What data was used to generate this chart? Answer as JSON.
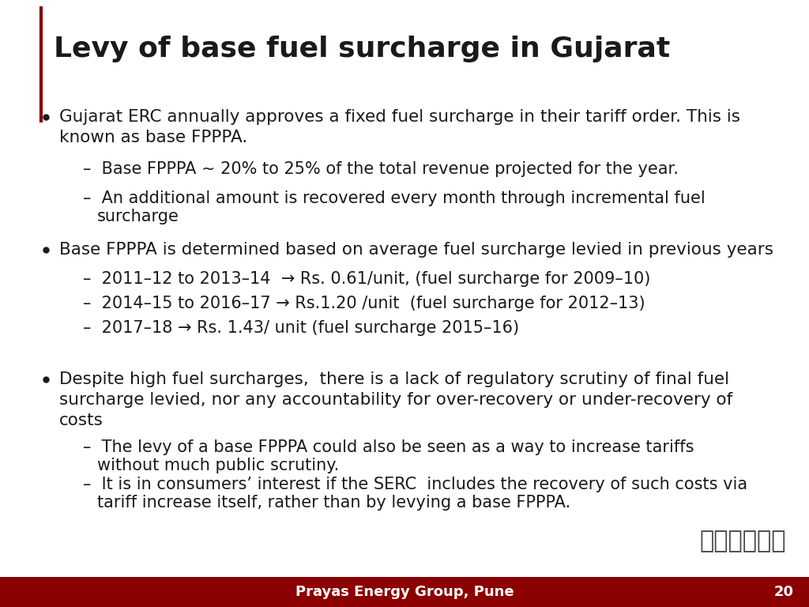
{
  "title": "Levy of base fuel surcharge in Gujarat",
  "title_color": "#1a1a1a",
  "title_fontsize": 26,
  "accent_line_color": "#8b0000",
  "background_color": "#ffffff",
  "footer_bg_color": "#8b0000",
  "footer_text": "Prayas Energy Group, Pune",
  "footer_page": "20",
  "footer_fontsize": 13,
  "text_color": "#1a1a1a",
  "bullet1_main_l1": "Gujarat ERC annually approves a fixed fuel surcharge in their tariff order. This is",
  "bullet1_main_l2": "known as base FPPPA.",
  "bullet1_sub1": "Base FPPPA ~ 20% to 25% of the total revenue projected for the year.",
  "bullet1_sub2_l1": "An additional amount is recovered every month through incremental fuel",
  "bullet1_sub2_l2": "surcharge",
  "bullet2_main": "Base FPPPA is determined based on average fuel surcharge levied in previous years",
  "bullet2_sub1": "2011–12 to 2013–14  → Rs. 0.61/unit, (fuel surcharge for 2009–10)",
  "bullet2_sub2": "2014–15 to 2016–17 → Rs.1.20 /unit  (fuel surcharge for 2012–13)",
  "bullet2_sub3": "2017–18 → Rs. 1.43/ unit (fuel surcharge 2015–16)",
  "bullet3_main_l1": "Despite high fuel surcharges,  there is a lack of regulatory scrutiny of final fuel",
  "bullet3_main_l2": "surcharge levied, nor any accountability for over-recovery or under-recovery of",
  "bullet3_main_l3": "costs",
  "bullet3_sub1_l1": "The levy of a base FPPPA could also be seen as a way to increase tariffs",
  "bullet3_sub1_l2": "without much public scrutiny.",
  "bullet3_sub2_l1": "It is in consumers’ interest if the SERC  includes the recovery of such costs via",
  "bullet3_sub2_l2": "tariff increase itself, rather than by levying a base FPPPA.",
  "main_fontsize": 15.5,
  "sub_fontsize": 15.0,
  "logo_text": "प्रयास"
}
